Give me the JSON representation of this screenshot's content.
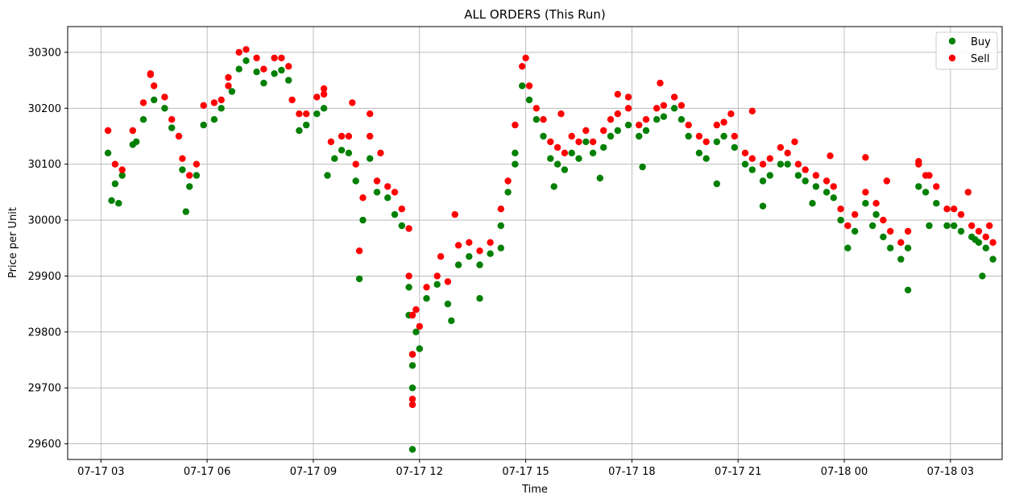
{
  "chart_data": {
    "type": "scatter",
    "title": "ALL ORDERS (This Run)",
    "xlabel": "Time",
    "ylabel": "Price per Unit",
    "x_ticks": [
      "07-17 03",
      "07-17 06",
      "07-17 09",
      "07-17 12",
      "07-17 15",
      "07-17 18",
      "07-17 21",
      "07-18 00",
      "07-18 03"
    ],
    "y_ticks": [
      "29600",
      "29700",
      "29800",
      "29900",
      "30000",
      "30100",
      "30200",
      "30300"
    ],
    "x_unit": "hours since 07-17 00:00",
    "xlim": [
      2.06,
      28.46
    ],
    "ylim": [
      29572,
      30346
    ],
    "grid": true,
    "legend_position": "top-right",
    "series": [
      {
        "name": "Buy",
        "color": "#008000",
        "points": [
          [
            3.2,
            30120
          ],
          [
            3.4,
            30065
          ],
          [
            3.6,
            30080
          ],
          [
            3.9,
            30135
          ],
          [
            4.2,
            30180
          ],
          [
            4.5,
            30215
          ],
          [
            4.8,
            30200
          ],
          [
            5.0,
            30165
          ],
          [
            5.3,
            30090
          ],
          [
            5.5,
            30060
          ],
          [
            5.7,
            30080
          ],
          [
            5.9,
            30170
          ],
          [
            6.2,
            30180
          ],
          [
            6.4,
            30200
          ],
          [
            6.7,
            30230
          ],
          [
            6.9,
            30270
          ],
          [
            7.1,
            30285
          ],
          [
            7.4,
            30265
          ],
          [
            7.6,
            30245
          ],
          [
            7.9,
            30262
          ],
          [
            8.1,
            30268
          ],
          [
            8.3,
            30250
          ],
          [
            8.6,
            30160
          ],
          [
            8.8,
            30170
          ],
          [
            9.1,
            30190
          ],
          [
            9.3,
            30200
          ],
          [
            9.6,
            30110
          ],
          [
            9.8,
            30125
          ],
          [
            10.0,
            30120
          ],
          [
            10.2,
            30070
          ],
          [
            10.4,
            30000
          ],
          [
            10.6,
            30110
          ],
          [
            10.8,
            30050
          ],
          [
            11.1,
            30040
          ],
          [
            11.3,
            30010
          ],
          [
            11.5,
            29990
          ],
          [
            11.7,
            29880
          ],
          [
            11.8,
            29760
          ],
          [
            11.9,
            29800
          ],
          [
            12.0,
            29770
          ],
          [
            12.2,
            29860
          ],
          [
            12.5,
            29885
          ],
          [
            12.8,
            29850
          ],
          [
            13.1,
            29920
          ],
          [
            13.4,
            29935
          ],
          [
            13.7,
            29920
          ],
          [
            14.0,
            29940
          ],
          [
            14.3,
            29990
          ],
          [
            14.5,
            30050
          ],
          [
            14.7,
            30120
          ],
          [
            14.9,
            30240
          ],
          [
            15.1,
            30215
          ],
          [
            15.3,
            30180
          ],
          [
            15.5,
            30150
          ],
          [
            15.7,
            30110
          ],
          [
            15.9,
            30100
          ],
          [
            16.1,
            30090
          ],
          [
            16.3,
            30120
          ],
          [
            16.5,
            30110
          ],
          [
            16.7,
            30140
          ],
          [
            16.9,
            30120
          ],
          [
            17.2,
            30130
          ],
          [
            17.4,
            30150
          ],
          [
            17.6,
            30160
          ],
          [
            17.9,
            30170
          ],
          [
            18.2,
            30150
          ],
          [
            18.4,
            30160
          ],
          [
            18.7,
            30180
          ],
          [
            18.9,
            30185
          ],
          [
            19.2,
            30200
          ],
          [
            19.4,
            30180
          ],
          [
            19.6,
            30150
          ],
          [
            19.9,
            30120
          ],
          [
            20.1,
            30110
          ],
          [
            20.4,
            30140
          ],
          [
            20.6,
            30150
          ],
          [
            20.9,
            30130
          ],
          [
            21.2,
            30100
          ],
          [
            21.4,
            30090
          ],
          [
            21.7,
            30070
          ],
          [
            21.9,
            30080
          ],
          [
            22.2,
            30100
          ],
          [
            22.4,
            30100
          ],
          [
            22.7,
            30080
          ],
          [
            22.9,
            30070
          ],
          [
            23.2,
            30060
          ],
          [
            23.5,
            30050
          ],
          [
            23.7,
            30040
          ],
          [
            23.9,
            30000
          ],
          [
            24.1,
            29950
          ],
          [
            24.3,
            29980
          ],
          [
            24.6,
            30030
          ],
          [
            24.9,
            30010
          ],
          [
            25.1,
            29970
          ],
          [
            25.3,
            29950
          ],
          [
            25.6,
            29930
          ],
          [
            25.8,
            29950
          ],
          [
            26.1,
            30060
          ],
          [
            26.3,
            30050
          ],
          [
            26.6,
            30030
          ],
          [
            26.9,
            29990
          ],
          [
            27.1,
            29990
          ],
          [
            27.3,
            29980
          ],
          [
            27.6,
            29970
          ],
          [
            27.8,
            29960
          ],
          [
            28.0,
            29950
          ],
          [
            28.2,
            29930
          ],
          [
            3.3,
            30035
          ],
          [
            3.5,
            30030
          ],
          [
            4.0,
            30140
          ],
          [
            5.4,
            30015
          ],
          [
            9.4,
            30080
          ],
          [
            10.3,
            29895
          ],
          [
            11.7,
            29830
          ],
          [
            11.8,
            29700
          ],
          [
            11.8,
            29590
          ],
          [
            11.8,
            29740
          ],
          [
            12.9,
            29820
          ],
          [
            13.7,
            29860
          ],
          [
            14.3,
            29950
          ],
          [
            14.7,
            30100
          ],
          [
            15.8,
            30060
          ],
          [
            17.1,
            30075
          ],
          [
            18.3,
            30095
          ],
          [
            20.4,
            30065
          ],
          [
            21.7,
            30025
          ],
          [
            23.1,
            30030
          ],
          [
            24.8,
            29990
          ],
          [
            25.8,
            29875
          ],
          [
            26.4,
            29990
          ],
          [
            27.7,
            29965
          ],
          [
            27.9,
            29900
          ]
        ]
      },
      {
        "name": "Sell",
        "color": "#ff0000",
        "points": [
          [
            3.2,
            30160
          ],
          [
            3.4,
            30100
          ],
          [
            3.6,
            30090
          ],
          [
            3.9,
            30160
          ],
          [
            4.2,
            30210
          ],
          [
            4.4,
            30260
          ],
          [
            4.5,
            30240
          ],
          [
            4.8,
            30220
          ],
          [
            5.0,
            30180
          ],
          [
            5.3,
            30110
          ],
          [
            5.5,
            30080
          ],
          [
            5.7,
            30100
          ],
          [
            5.9,
            30205
          ],
          [
            6.2,
            30210
          ],
          [
            6.4,
            30215
          ],
          [
            6.6,
            30240
          ],
          [
            6.9,
            30300
          ],
          [
            7.1,
            30305
          ],
          [
            7.4,
            30290
          ],
          [
            7.6,
            30270
          ],
          [
            7.9,
            30290
          ],
          [
            8.1,
            30290
          ],
          [
            8.3,
            30275
          ],
          [
            8.6,
            30190
          ],
          [
            8.8,
            30190
          ],
          [
            9.1,
            30220
          ],
          [
            9.3,
            30225
          ],
          [
            9.5,
            30140
          ],
          [
            9.8,
            30150
          ],
          [
            10.0,
            30150
          ],
          [
            10.2,
            30100
          ],
          [
            10.4,
            30040
          ],
          [
            10.6,
            30150
          ],
          [
            10.8,
            30070
          ],
          [
            11.1,
            30060
          ],
          [
            11.3,
            30050
          ],
          [
            11.5,
            30020
          ],
          [
            11.7,
            29900
          ],
          [
            11.8,
            29830
          ],
          [
            11.9,
            29840
          ],
          [
            12.0,
            29810
          ],
          [
            12.2,
            29880
          ],
          [
            12.5,
            29900
          ],
          [
            12.8,
            29890
          ],
          [
            13.1,
            29955
          ],
          [
            13.4,
            29960
          ],
          [
            13.7,
            29945
          ],
          [
            14.0,
            29960
          ],
          [
            14.3,
            30020
          ],
          [
            14.5,
            30070
          ],
          [
            14.7,
            30170
          ],
          [
            14.9,
            30275
          ],
          [
            15.1,
            30240
          ],
          [
            15.3,
            30200
          ],
          [
            15.5,
            30180
          ],
          [
            15.7,
            30140
          ],
          [
            15.9,
            30130
          ],
          [
            16.1,
            30120
          ],
          [
            16.3,
            30150
          ],
          [
            16.5,
            30140
          ],
          [
            16.7,
            30160
          ],
          [
            16.9,
            30140
          ],
          [
            17.2,
            30160
          ],
          [
            17.4,
            30180
          ],
          [
            17.6,
            30190
          ],
          [
            17.9,
            30200
          ],
          [
            18.2,
            30170
          ],
          [
            18.4,
            30180
          ],
          [
            18.7,
            30200
          ],
          [
            18.9,
            30205
          ],
          [
            19.2,
            30220
          ],
          [
            19.4,
            30205
          ],
          [
            19.6,
            30170
          ],
          [
            19.9,
            30150
          ],
          [
            20.1,
            30140
          ],
          [
            20.4,
            30170
          ],
          [
            20.6,
            30175
          ],
          [
            20.9,
            30150
          ],
          [
            21.2,
            30120
          ],
          [
            21.4,
            30110
          ],
          [
            21.7,
            30100
          ],
          [
            21.9,
            30110
          ],
          [
            22.2,
            30130
          ],
          [
            22.4,
            30120
          ],
          [
            22.7,
            30100
          ],
          [
            22.9,
            30090
          ],
          [
            23.2,
            30080
          ],
          [
            23.5,
            30070
          ],
          [
            23.7,
            30060
          ],
          [
            23.9,
            30020
          ],
          [
            24.1,
            29990
          ],
          [
            24.3,
            30010
          ],
          [
            24.6,
            30050
          ],
          [
            24.9,
            30030
          ],
          [
            25.1,
            30000
          ],
          [
            25.3,
            29980
          ],
          [
            25.6,
            29960
          ],
          [
            25.8,
            29980
          ],
          [
            26.1,
            30100
          ],
          [
            26.3,
            30080
          ],
          [
            26.6,
            30060
          ],
          [
            26.9,
            30020
          ],
          [
            27.1,
            30020
          ],
          [
            27.3,
            30010
          ],
          [
            27.6,
            29990
          ],
          [
            27.8,
            29980
          ],
          [
            28.0,
            29970
          ],
          [
            28.2,
            29960
          ],
          [
            4.4,
            30262
          ],
          [
            5.2,
            30150
          ],
          [
            6.6,
            30255
          ],
          [
            8.4,
            30215
          ],
          [
            9.3,
            30235
          ],
          [
            10.1,
            30210
          ],
          [
            10.3,
            29945
          ],
          [
            10.6,
            30190
          ],
          [
            10.9,
            30120
          ],
          [
            11.7,
            29985
          ],
          [
            11.8,
            29680
          ],
          [
            11.8,
            29670
          ],
          [
            11.8,
            29760
          ],
          [
            12.6,
            29935
          ],
          [
            13.0,
            30010
          ],
          [
            15.0,
            30290
          ],
          [
            16.0,
            30190
          ],
          [
            17.6,
            30225
          ],
          [
            17.9,
            30220
          ],
          [
            18.8,
            30245
          ],
          [
            20.8,
            30190
          ],
          [
            21.4,
            30195
          ],
          [
            22.6,
            30140
          ],
          [
            23.6,
            30115
          ],
          [
            24.6,
            30112
          ],
          [
            25.2,
            30070
          ],
          [
            26.1,
            30105
          ],
          [
            26.4,
            30080
          ],
          [
            27.5,
            30050
          ],
          [
            28.1,
            29990
          ]
        ]
      }
    ]
  }
}
